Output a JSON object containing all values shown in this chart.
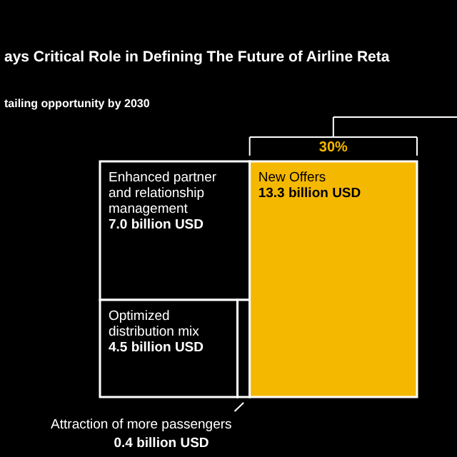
{
  "chart_data": {
    "type": "other",
    "title": "ays Critical Role in Defining The Future of Airline Reta",
    "subtitle": "tailing opportunity by 2030",
    "categories": [
      "Enhanced partner and relationship management",
      "Optimized distribution mix",
      "Attraction of more passengers",
      "New Offers"
    ],
    "values": [
      7.0,
      4.5,
      0.4,
      13.3
    ],
    "value_labels": [
      "7.0 billion USD",
      "4.5 billion USD",
      "0.4 billion USD",
      "13.3 billion USD"
    ],
    "colors": [
      "#000000",
      "#000000",
      "#000000",
      "#f5b800"
    ],
    "annotations": [
      "30%"
    ]
  }
}
